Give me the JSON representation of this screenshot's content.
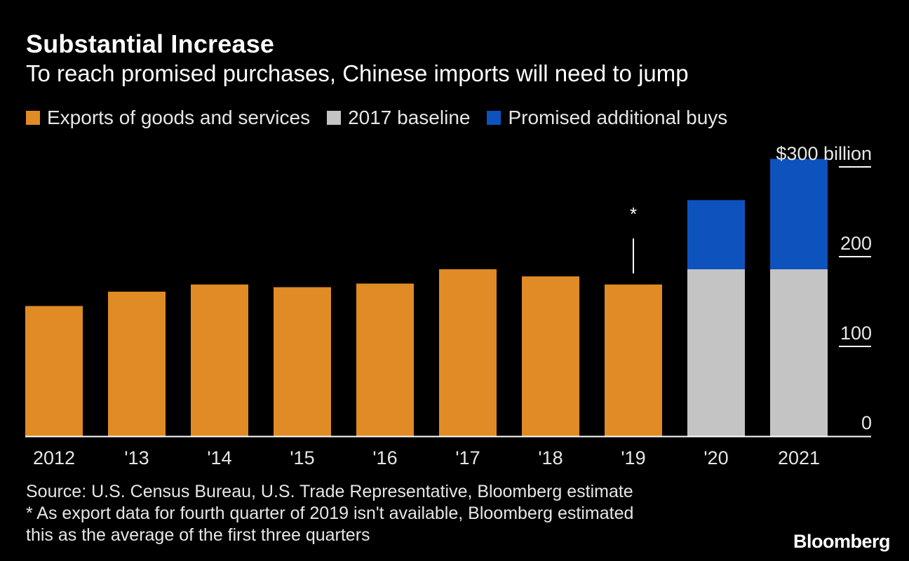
{
  "header": {
    "title": "Substantial Increase",
    "subtitle": "To reach promised purchases, Chinese imports will need to jump"
  },
  "legend": [
    {
      "label": "Exports of goods and services",
      "color": "#e08b25"
    },
    {
      "label": "2017 baseline",
      "color": "#c4c4c4"
    },
    {
      "label": "Promised additional buys",
      "color": "#0e52be"
    }
  ],
  "chart_data": {
    "type": "bar",
    "stacked": true,
    "categories": [
      "2012",
      "'13",
      "'14",
      "'15",
      "'16",
      "'17",
      "'18",
      "'19",
      "'20",
      "2021"
    ],
    "series": [
      {
        "name": "Exports of goods and services",
        "color": "#e08b25",
        "values": [
          145,
          161,
          169,
          166,
          170,
          186,
          178,
          169,
          null,
          null
        ]
      },
      {
        "name": "2017 baseline",
        "color": "#c4c4c4",
        "values": [
          null,
          null,
          null,
          null,
          null,
          null,
          null,
          null,
          186,
          186
        ]
      },
      {
        "name": "Promised additional buys",
        "color": "#0e52be",
        "values": [
          null,
          null,
          null,
          null,
          null,
          null,
          null,
          null,
          77,
          123
        ]
      }
    ],
    "ylim": [
      0,
      300
    ],
    "yticks": [
      0,
      100,
      200,
      300
    ],
    "ytick_labels": [
      "0",
      "100",
      "200",
      "300"
    ],
    "y_unit_prefix": "$",
    "y_unit_suffix": "billion",
    "axis_side": "right",
    "annotation": {
      "category": "'19",
      "text": "*"
    }
  },
  "footer": {
    "source": "Source: U.S. Census Bureau, U.S. Trade Representative, Bloomberg estimate",
    "note_line1": "* As export data for fourth quarter of 2019 isn't available, Bloomberg estimated",
    "note_line2": "this as the average of the first three quarters",
    "logo": "Bloomberg"
  }
}
